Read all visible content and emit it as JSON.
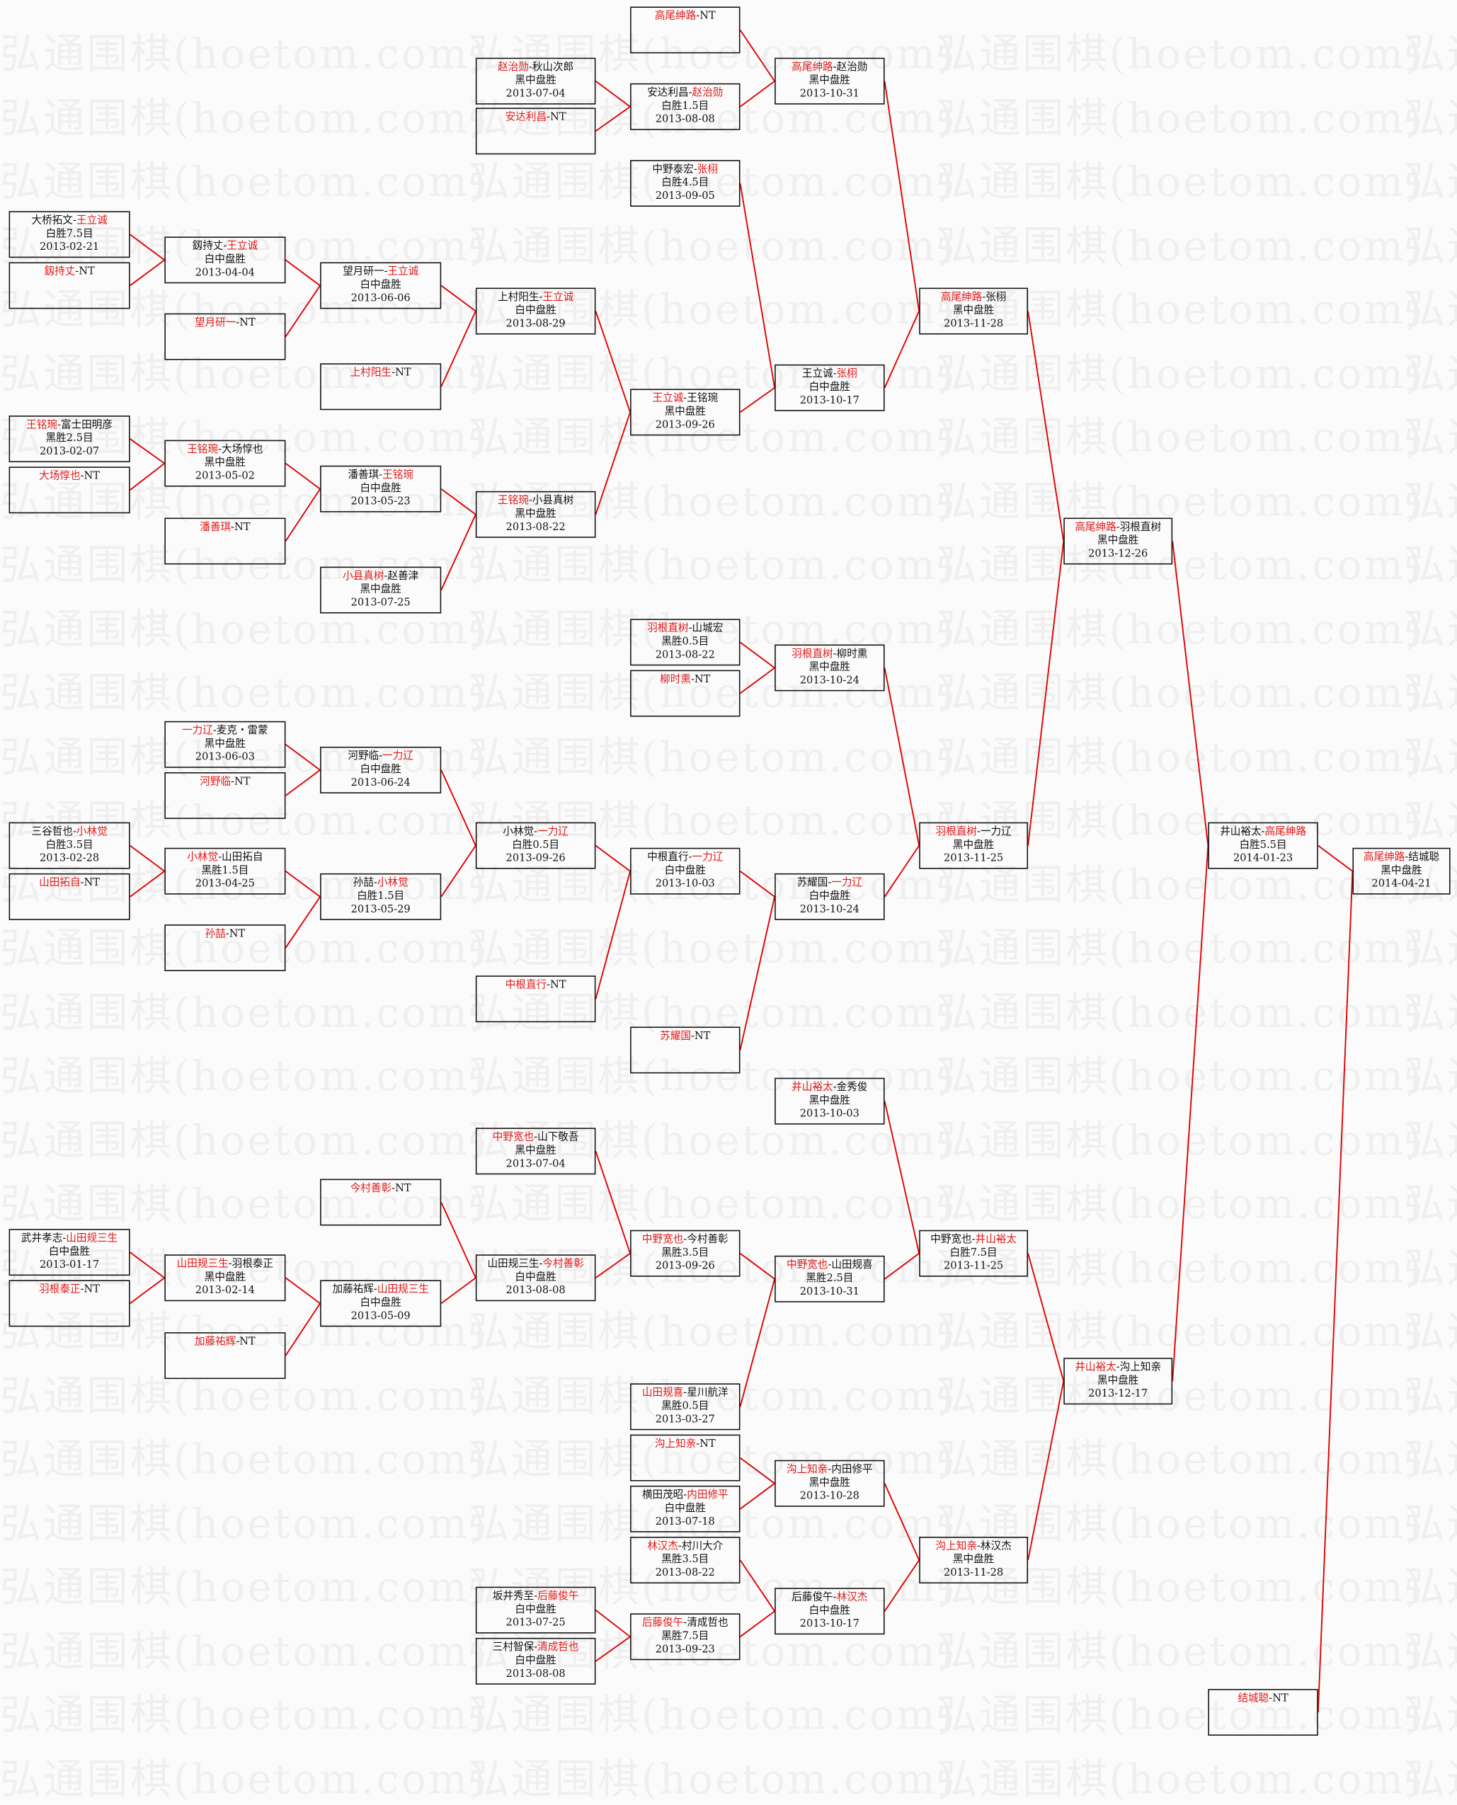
{
  "watermark": "弘通围棋(hoetom.com)",
  "colors": {
    "winner": "#e21a1a",
    "connector": "#e00000",
    "border": "#111111"
  },
  "separator": "-",
  "matches": [
    {
      "a": "大桥拓文",
      "b": "王立诚",
      "winner": "b",
      "result": "白胜7.5目",
      "date": "2013-02-21",
      "to": 8
    },
    {
      "a": "釼持丈",
      "b": "NT",
      "winner": "a",
      "result": "",
      "date": "",
      "to": 8
    },
    {
      "a": "王铭琬",
      "b": "富士田明彦",
      "winner": "a",
      "result": "黑胜2.5目",
      "date": "2013-02-07",
      "to": 10
    },
    {
      "a": "大场惇也",
      "b": "NT",
      "winner": "a",
      "result": "",
      "date": "",
      "to": 10
    },
    {
      "a": "三谷哲也",
      "b": "小林觉",
      "winner": "b",
      "result": "白胜3.5目",
      "date": "2013-02-28",
      "to": 14
    },
    {
      "a": "山田拓自",
      "b": "NT",
      "winner": "a",
      "result": "",
      "date": "",
      "to": 14
    },
    {
      "a": "武井孝志",
      "b": "山田规三生",
      "winner": "b",
      "result": "白中盘胜",
      "date": "2013-01-17",
      "to": 16
    },
    {
      "a": "羽根泰正",
      "b": "NT",
      "winner": "a",
      "result": "",
      "date": "",
      "to": 16
    },
    {
      "a": "釼持丈",
      "b": "王立诚",
      "winner": "b",
      "result": "白中盘胜",
      "date": "2013-04-04",
      "to": 18
    },
    {
      "a": "望月研一",
      "b": "NT",
      "winner": "a",
      "result": "",
      "date": "",
      "to": 18
    },
    {
      "a": "王铭琬",
      "b": "大场惇也",
      "winner": "a",
      "result": "黑中盘胜",
      "date": "2013-05-02",
      "to": 20
    },
    {
      "a": "潘善琪",
      "b": "NT",
      "winner": "a",
      "result": "",
      "date": "",
      "to": 20
    },
    {
      "a": "一力辽",
      "b": "麦克・雷蒙",
      "winner": "a",
      "result": "黑中盘胜",
      "date": "2013-06-03",
      "to": 22
    },
    {
      "a": "河野临",
      "b": "NT",
      "winner": "a",
      "result": "",
      "date": "",
      "to": 22
    },
    {
      "a": "小林觉",
      "b": "山田拓自",
      "winner": "a",
      "result": "黑胜1.5目",
      "date": "2013-04-25",
      "to": 23
    },
    {
      "a": "孙喆",
      "b": "NT",
      "winner": "a",
      "result": "",
      "date": "",
      "to": 23
    },
    {
      "a": "山田规三生",
      "b": "羽根泰正",
      "winner": "a",
      "result": "黑中盘胜",
      "date": "2013-02-14",
      "to": 25
    },
    {
      "a": "加藤祐辉",
      "b": "NT",
      "winner": "a",
      "result": "",
      "date": "",
      "to": 25
    },
    {
      "a": "望月研一",
      "b": "王立诚",
      "winner": "b",
      "result": "白中盘胜",
      "date": "2013-06-06",
      "to": 28
    },
    {
      "a": "上村阳生",
      "b": "NT",
      "winner": "a",
      "result": "",
      "date": "",
      "to": 28
    },
    {
      "a": "潘善琪",
      "b": "王铭琬",
      "winner": "b",
      "result": "白中盘胜",
      "date": "2013-05-23",
      "to": 29
    },
    {
      "a": "小县真树",
      "b": "赵善津",
      "winner": "a",
      "result": "黑中盘胜",
      "date": "2013-07-25",
      "to": 29
    },
    {
      "a": "河野临",
      "b": "一力辽",
      "winner": "b",
      "result": "白中盘胜",
      "date": "2013-06-24",
      "to": 30
    },
    {
      "a": "孙喆",
      "b": "小林觉",
      "winner": "b",
      "result": "白胜1.5目",
      "date": "2013-05-29",
      "to": 30
    },
    {
      "a": "今村善彰",
      "b": "NT",
      "winner": "a",
      "result": "",
      "date": "",
      "to": 33
    },
    {
      "a": "加藤祐辉",
      "b": "山田规三生",
      "winner": "b",
      "result": "白中盘胜",
      "date": "2013-05-09",
      "to": 33
    },
    {
      "a": "赵治勋",
      "b": "秋山次郎",
      "winner": "a",
      "result": "黑中盘胜",
      "date": "2013-07-04",
      "to": 37
    },
    {
      "a": "安达利昌",
      "b": "NT",
      "winner": "a",
      "result": "",
      "date": "",
      "to": 37
    },
    {
      "a": "上村阳生",
      "b": "王立诚",
      "winner": "b",
      "result": "白中盘胜",
      "date": "2013-08-29",
      "to": 39
    },
    {
      "a": "王铭琬",
      "b": "小县真树",
      "winner": "a",
      "result": "黑中盘胜",
      "date": "2013-08-22",
      "to": 39
    },
    {
      "a": "小林觉",
      "b": "一力辽",
      "winner": "b",
      "result": "白胜0.5目",
      "date": "2013-09-26",
      "to": 42
    },
    {
      "a": "中根直行",
      "b": "NT",
      "winner": "a",
      "result": "",
      "date": "",
      "to": 42
    },
    {
      "a": "中野宽也",
      "b": "山下敬吾",
      "winner": "a",
      "result": "黑中盘胜",
      "date": "2013-07-04",
      "to": 44
    },
    {
      "a": "山田规三生",
      "b": "今村善彰",
      "winner": "b",
      "result": "白中盘胜",
      "date": "2013-08-08",
      "to": 44
    },
    {
      "a": "坂井秀至",
      "b": "后藤俊午",
      "winner": "b",
      "result": "白中盘胜",
      "date": "2013-07-25",
      "to": 49
    },
    {
      "a": "三村智保",
      "b": "清成哲也",
      "winner": "b",
      "result": "白中盘胜",
      "date": "2013-08-08",
      "to": 49
    },
    {
      "a": "高尾绅路",
      "b": "NT",
      "winner": "a",
      "result": "",
      "date": "",
      "to": 50
    },
    {
      "a": "安达利昌",
      "b": "赵治勋",
      "winner": "b",
      "result": "白胜1.5目",
      "date": "2013-08-08",
      "to": 50
    },
    {
      "a": "中野泰宏",
      "b": "张栩",
      "winner": "b",
      "result": "白胜4.5目",
      "date": "2013-09-05",
      "to": 51
    },
    {
      "a": "王立诚",
      "b": "王铭琬",
      "winner": "a",
      "result": "黑中盘胜",
      "date": "2013-09-26",
      "to": 51
    },
    {
      "a": "羽根直树",
      "b": "山城宏",
      "winner": "a",
      "result": "黑胜0.5目",
      "date": "2013-08-22",
      "to": 52
    },
    {
      "a": "柳时熏",
      "b": "NT",
      "winner": "a",
      "result": "",
      "date": "",
      "to": 52
    },
    {
      "a": "中根直行",
      "b": "一力辽",
      "winner": "b",
      "result": "白中盘胜",
      "date": "2013-10-03",
      "to": 53
    },
    {
      "a": "苏耀国",
      "b": "NT",
      "winner": "a",
      "result": "",
      "date": "",
      "to": 53
    },
    {
      "a": "中野宽也",
      "b": "今村善彰",
      "winner": "a",
      "result": "黑胜3.5目",
      "date": "2013-09-26",
      "to": 55
    },
    {
      "a": "山田规喜",
      "b": "星川航洋",
      "winner": "a",
      "result": "黑胜0.5目",
      "date": "2013-03-27",
      "to": 55
    },
    {
      "a": "沟上知亲",
      "b": "NT",
      "winner": "a",
      "result": "",
      "date": "",
      "to": 56
    },
    {
      "a": "横田茂昭",
      "b": "内田修平",
      "winner": "b",
      "result": "白中盘胜",
      "date": "2013-07-18",
      "to": 56
    },
    {
      "a": "林汉杰",
      "b": "村川大介",
      "winner": "a",
      "result": "黑胜3.5目",
      "date": "2013-08-22",
      "to": 57
    },
    {
      "a": "后藤俊午",
      "b": "清成哲也",
      "winner": "a",
      "result": "黑胜7.5目",
      "date": "2013-09-23",
      "to": 57
    },
    {
      "a": "高尾绅路",
      "b": "赵治勋",
      "winner": "a",
      "result": "黑中盘胜",
      "date": "2013-10-31",
      "to": 58
    },
    {
      "a": "王立诚",
      "b": "张栩",
      "winner": "b",
      "result": "白中盘胜",
      "date": "2013-10-17",
      "to": 58
    },
    {
      "a": "羽根直树",
      "b": "柳时熏",
      "winner": "a",
      "result": "黑中盘胜",
      "date": "2013-10-24",
      "to": 59
    },
    {
      "a": "苏耀国",
      "b": "一力辽",
      "winner": "b",
      "result": "白中盘胜",
      "date": "2013-10-24",
      "to": 59
    },
    {
      "a": "井山裕太",
      "b": "金秀俊",
      "winner": "a",
      "result": "黑中盘胜",
      "date": "2013-10-03",
      "to": 60
    },
    {
      "a": "中野宽也",
      "b": "山田规喜",
      "winner": "a",
      "result": "黑胜2.5目",
      "date": "2013-10-31",
      "to": 60
    },
    {
      "a": "沟上知亲",
      "b": "内田修平",
      "winner": "a",
      "result": "黑中盘胜",
      "date": "2013-10-28",
      "to": 61
    },
    {
      "a": "后藤俊午",
      "b": "林汉杰",
      "winner": "b",
      "result": "白中盘胜",
      "date": "2013-10-17",
      "to": 61
    },
    {
      "a": "高尾绅路",
      "b": "张栩",
      "winner": "a",
      "result": "黑中盘胜",
      "date": "2013-11-28",
      "to": 62
    },
    {
      "a": "羽根直树",
      "b": "一力辽",
      "winner": "a",
      "result": "黑中盘胜",
      "date": "2013-11-25",
      "to": 62
    },
    {
      "a": "中野宽也",
      "b": "井山裕太",
      "winner": "b",
      "result": "白胜7.5目",
      "date": "2013-11-25",
      "to": 63
    },
    {
      "a": "沟上知亲",
      "b": "林汉杰",
      "winner": "a",
      "result": "黑中盘胜",
      "date": "2013-11-28",
      "to": 63
    },
    {
      "a": "高尾绅路",
      "b": "羽根直树",
      "winner": "a",
      "result": "黑中盘胜",
      "date": "2013-12-26",
      "to": 64
    },
    {
      "a": "井山裕太",
      "b": "沟上知亲",
      "winner": "a",
      "result": "黑中盘胜",
      "date": "2013-12-17",
      "to": 64
    },
    {
      "a": "井山裕太",
      "b": "高尾绅路",
      "winner": "b",
      "result": "白胜5.5目",
      "date": "2014-01-23",
      "to": 66
    },
    {
      "a": "结城聪",
      "b": "NT",
      "winner": "a",
      "result": "",
      "date": "",
      "to": 66
    },
    {
      "a": "高尾绅路",
      "b": "结城聪",
      "winner": "a",
      "result": "黑中盘胜",
      "date": "2014-04-21",
      "to": null
    }
  ]
}
